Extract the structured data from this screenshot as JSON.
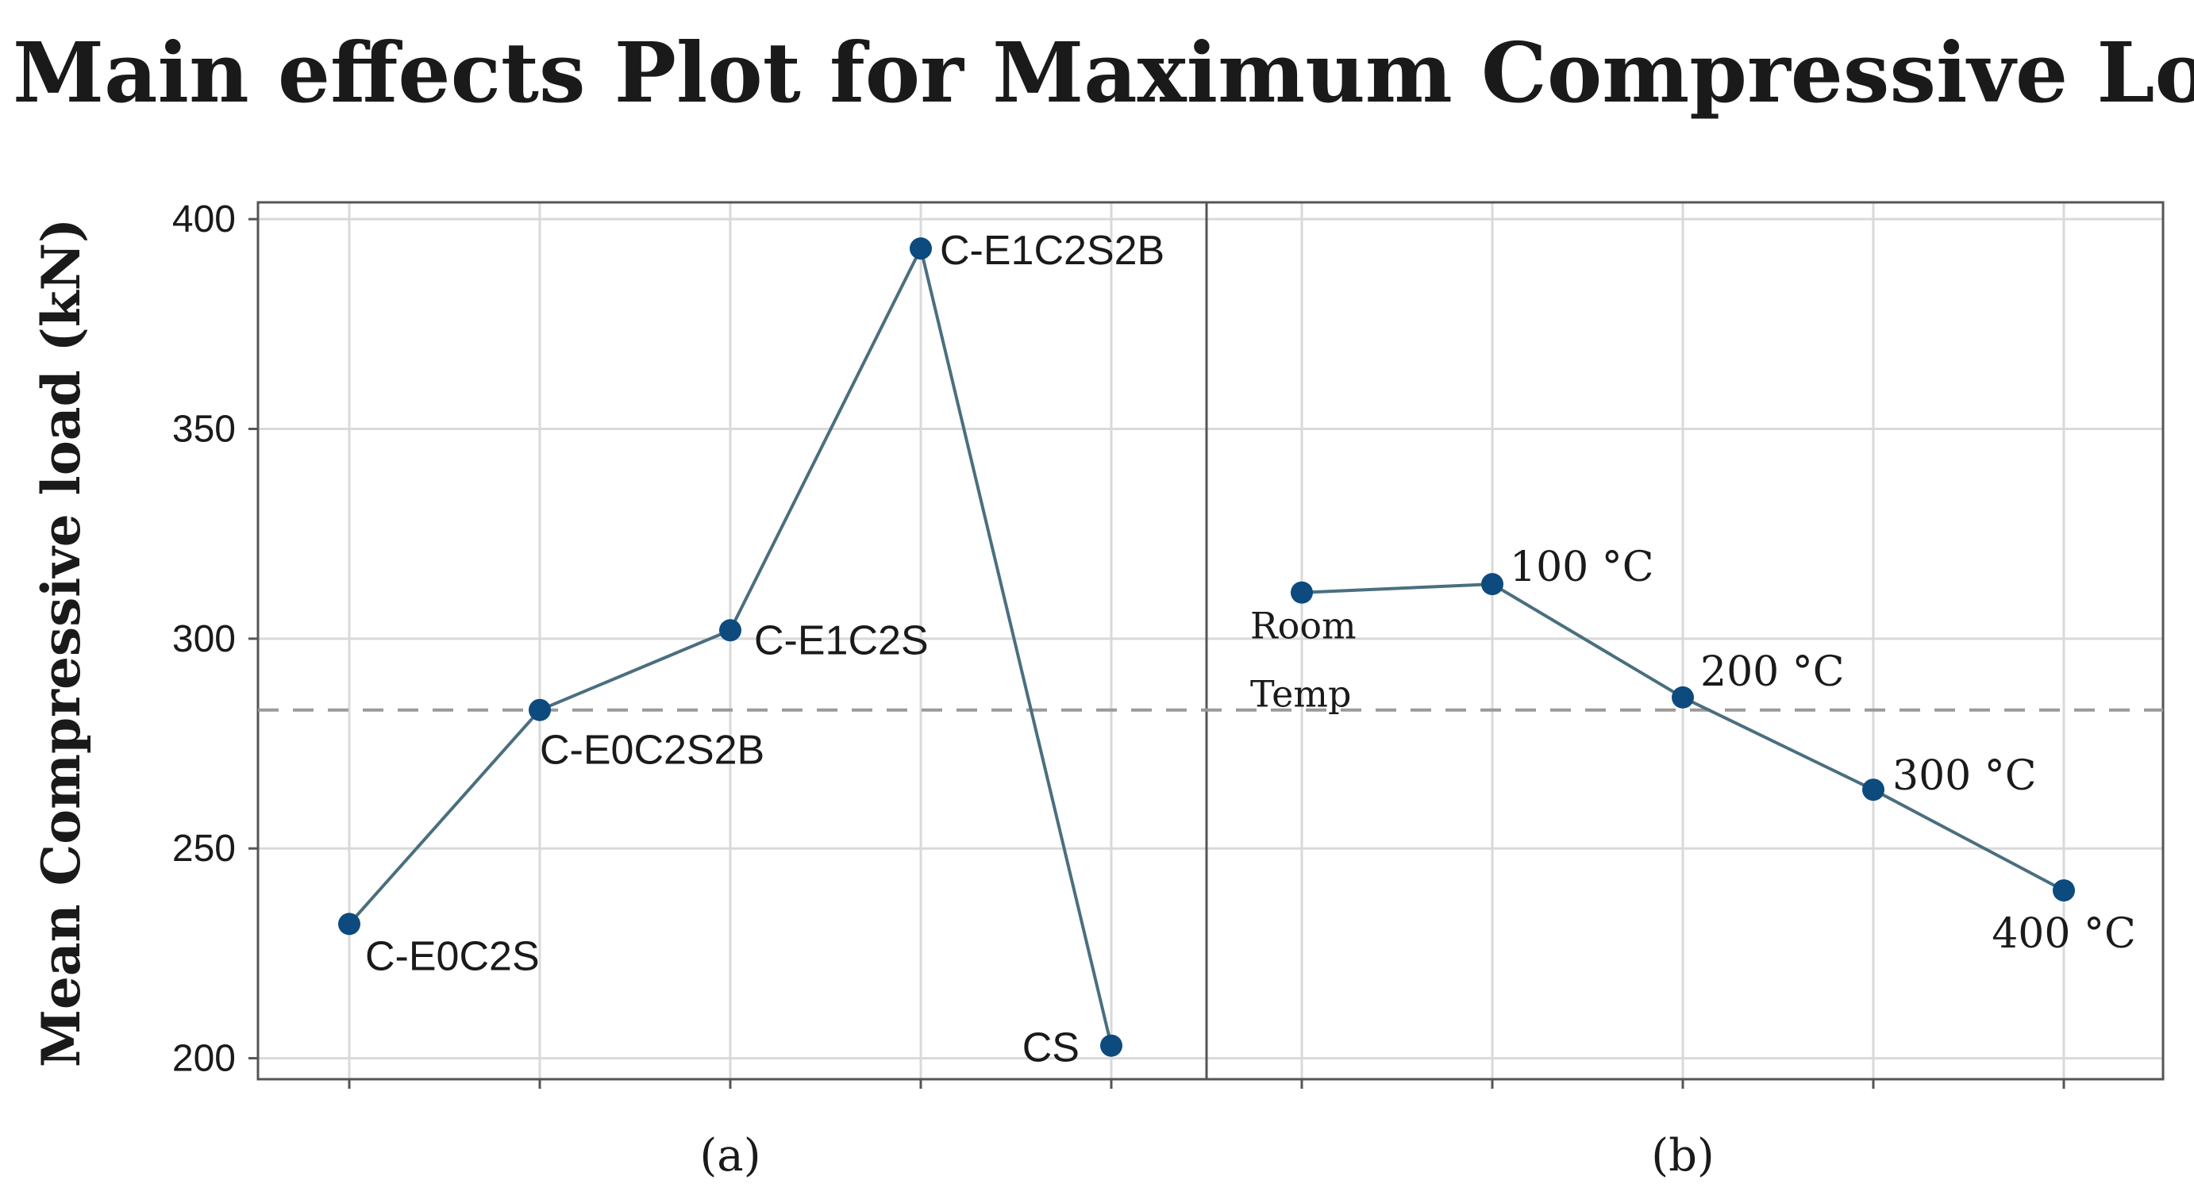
{
  "chart": {
    "title": "Main effects Plot for Maximum Compressive Load",
    "ylabel": "Mean Compressive load (kN)"
  },
  "chart_data": {
    "type": "line",
    "title": "Main effects Plot for Maximum Compressive Load",
    "ylabel": "Mean Compressive load (kN)",
    "ylim": [
      195,
      404
    ],
    "yticks": [
      200,
      250,
      300,
      350,
      400
    ],
    "grid": true,
    "reference_line": {
      "value": 283,
      "style": "dashed"
    },
    "panels": [
      {
        "label": "(a)",
        "categories": [
          "C-E0C2S",
          "C-E0C2S2B",
          "C-E1C2S",
          "C-E1C2S2B",
          "CS"
        ],
        "values": [
          232,
          283,
          302,
          393,
          203
        ]
      },
      {
        "label": "(b)",
        "categories": [
          "Room Temp",
          "100 °C",
          "200 °C",
          "300 °C",
          "400 °C"
        ],
        "values": [
          311,
          313,
          286,
          264,
          240
        ]
      }
    ],
    "colors": {
      "line": "#4a6f7f",
      "marker": "#0d4a7e",
      "grid": "#d9d9d9",
      "frame": "#555555",
      "reference": "#9a9a9a"
    }
  }
}
